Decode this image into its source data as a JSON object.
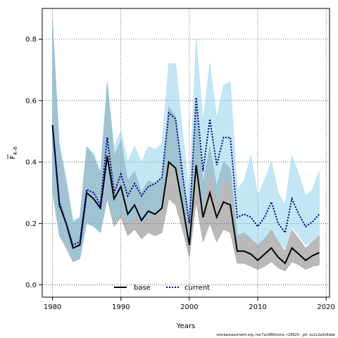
{
  "chart_data": {
    "type": "line",
    "title": "",
    "xlabel": "Years",
    "ylabel_main": "F",
    "ylabel_sub": "4–6",
    "xlim": [
      1978.5,
      2020.5
    ],
    "ylim": [
      -0.04,
      0.9
    ],
    "x_ticks": [
      1980,
      1990,
      2000,
      2010,
      2020
    ],
    "y_ticks": [
      0.0,
      0.2,
      0.4,
      0.6,
      0.8
    ],
    "y_tick_labels": [
      "0.0",
      "0.2",
      "0.4",
      "0.6",
      "0.8"
    ],
    "grid": true,
    "legend_position": "bottom-center",
    "x": [
      1980,
      1981,
      1982,
      1983,
      1984,
      1985,
      1986,
      1987,
      1988,
      1989,
      1990,
      1991,
      1992,
      1993,
      1994,
      1995,
      1996,
      1997,
      1998,
      1999,
      2000,
      2001,
      2002,
      2003,
      2004,
      2005,
      2006,
      2007,
      2008,
      2009,
      2010,
      2011,
      2012,
      2013,
      2014,
      2015,
      2016,
      2017,
      2018,
      2019
    ],
    "series": [
      {
        "name": "base",
        "color": "#000000",
        "band_color": "#808080",
        "style": "solid",
        "values": [
          0.52,
          0.26,
          0.2,
          0.12,
          0.13,
          0.3,
          0.28,
          0.25,
          0.42,
          0.28,
          0.32,
          0.23,
          0.26,
          0.21,
          0.24,
          0.23,
          0.25,
          0.4,
          0.38,
          0.26,
          0.13,
          0.39,
          0.22,
          0.3,
          0.22,
          0.27,
          0.26,
          0.11,
          0.11,
          0.1,
          0.08,
          0.1,
          0.12,
          0.09,
          0.07,
          0.12,
          0.1,
          0.08,
          0.095,
          0.105
        ],
        "lower": [
          0.31,
          0.16,
          0.12,
          0.075,
          0.085,
          0.2,
          0.19,
          0.17,
          0.28,
          0.19,
          0.22,
          0.16,
          0.18,
          0.15,
          0.17,
          0.16,
          0.17,
          0.28,
          0.26,
          0.18,
          0.09,
          0.27,
          0.14,
          0.2,
          0.14,
          0.18,
          0.17,
          0.07,
          0.07,
          0.06,
          0.05,
          0.06,
          0.075,
          0.055,
          0.045,
          0.075,
          0.065,
          0.05,
          0.06,
          0.065
        ],
        "upper": [
          0.86,
          0.45,
          0.33,
          0.2,
          0.22,
          0.45,
          0.42,
          0.36,
          0.66,
          0.42,
          0.47,
          0.34,
          0.37,
          0.3,
          0.34,
          0.33,
          0.35,
          0.58,
          0.55,
          0.38,
          0.19,
          0.58,
          0.33,
          0.45,
          0.32,
          0.4,
          0.38,
          0.16,
          0.17,
          0.15,
          0.13,
          0.15,
          0.18,
          0.14,
          0.11,
          0.18,
          0.15,
          0.12,
          0.14,
          0.16
        ]
      },
      {
        "name": "current",
        "color": "#000080",
        "band_color": "#87ceeb",
        "style": "dotted",
        "values": [
          0.52,
          0.27,
          0.2,
          0.13,
          0.14,
          0.31,
          0.3,
          0.26,
          0.48,
          0.3,
          0.36,
          0.29,
          0.33,
          0.29,
          0.32,
          0.33,
          0.35,
          0.56,
          0.54,
          0.36,
          0.2,
          0.61,
          0.37,
          0.54,
          0.39,
          0.48,
          0.48,
          0.22,
          0.23,
          0.22,
          0.19,
          0.22,
          0.27,
          0.2,
          0.17,
          0.28,
          0.23,
          0.19,
          0.205,
          0.23
        ],
        "lower": [
          0.3,
          0.16,
          0.12,
          0.08,
          0.09,
          0.2,
          0.19,
          0.17,
          0.29,
          0.2,
          0.23,
          0.2,
          0.22,
          0.2,
          0.22,
          0.23,
          0.24,
          0.4,
          0.38,
          0.25,
          0.13,
          0.42,
          0.25,
          0.38,
          0.27,
          0.34,
          0.33,
          0.15,
          0.16,
          0.15,
          0.13,
          0.15,
          0.18,
          0.14,
          0.12,
          0.19,
          0.16,
          0.13,
          0.14,
          0.16
        ],
        "upper": [
          0.85,
          0.46,
          0.35,
          0.21,
          0.22,
          0.45,
          0.43,
          0.37,
          0.66,
          0.45,
          0.5,
          0.4,
          0.45,
          0.4,
          0.45,
          0.44,
          0.46,
          0.72,
          0.72,
          0.5,
          0.3,
          0.8,
          0.53,
          0.72,
          0.54,
          0.65,
          0.66,
          0.31,
          0.34,
          0.42,
          0.29,
          0.34,
          0.4,
          0.3,
          0.26,
          0.42,
          0.36,
          0.29,
          0.31,
          0.37
        ]
      }
    ]
  },
  "footer_text": "stockassessment.org, her7a1980clone, r16620 , git: ec2c2a0c6dde"
}
